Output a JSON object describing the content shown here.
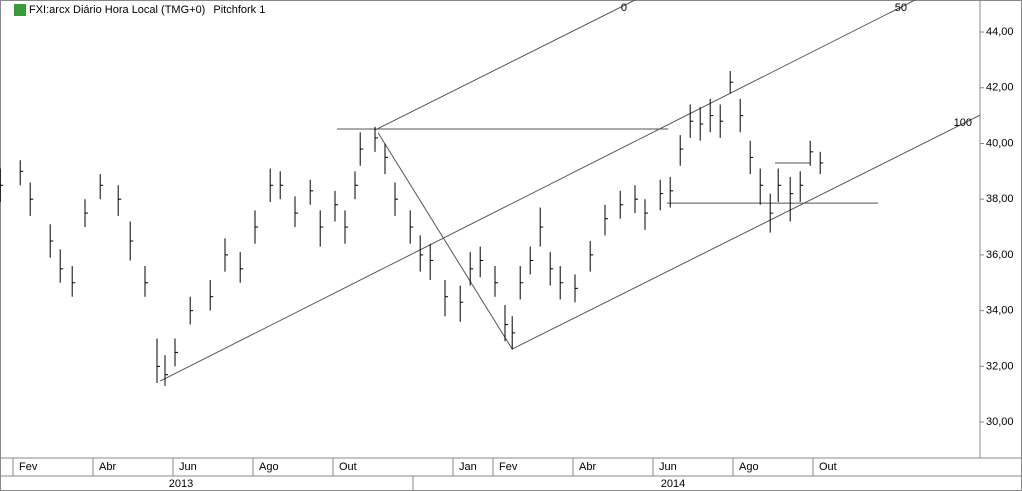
{
  "chart_data": {
    "type": "ohlc",
    "title": "FXI:arcx Diário Hora Local (TMG+0)",
    "study": "Pitchfork 1",
    "color": "#000000",
    "x": [
      0.68,
      1.18,
      1.43,
      1.93,
      2.18,
      2.48,
      2.8,
      3.18,
      3.63,
      3.93,
      4.3,
      4.6,
      4.8,
      5.05,
      5.43,
      5.93,
      6.3,
      6.68,
      7.05,
      7.43,
      7.68,
      8.05,
      8.43,
      8.68,
      9.05,
      9.3,
      9.55,
      9.68,
      10.05,
      10.3,
      10.55,
      10.93,
      11.18,
      11.43,
      11.8,
      12.18,
      12.43,
      12.68,
      13.05,
      13.3,
      13.48,
      13.68,
      13.93,
      14.18,
      14.43,
      14.68,
      15.05,
      15.43,
      15.8,
      16.18,
      16.55,
      16.8,
      17.18,
      17.43,
      17.68,
      17.93,
      18.18,
      18.43,
      18.68,
      18.93,
      19.18,
      19.43,
      19.68,
      19.93,
      20.13,
      20.43,
      20.68,
      20.93,
      21.18
    ],
    "high": [
      39.1,
      39.4,
      38.6,
      37.1,
      36.2,
      35.6,
      38.0,
      38.9,
      38.5,
      37.2,
      35.6,
      33.0,
      32.4,
      33.0,
      34.5,
      35.1,
      36.6,
      36.1,
      37.6,
      39.1,
      39.0,
      38.1,
      38.7,
      37.6,
      38.3,
      37.6,
      39.0,
      40.4,
      40.6,
      40.0,
      38.6,
      37.6,
      36.7,
      36.4,
      35.1,
      34.9,
      36.1,
      36.3,
      35.6,
      34.2,
      33.8,
      35.6,
      36.3,
      37.7,
      36.1,
      35.6,
      35.3,
      36.5,
      37.8,
      38.3,
      38.5,
      38.0,
      38.7,
      38.8,
      40.3,
      41.4,
      41.3,
      41.6,
      41.4,
      42.6,
      41.6,
      40.1,
      39.1,
      38.2,
      39.1,
      38.8,
      39.0,
      40.1,
      39.7
    ],
    "low": [
      37.9,
      38.5,
      37.4,
      35.9,
      35.0,
      34.5,
      37.0,
      38.0,
      37.4,
      35.8,
      34.5,
      31.4,
      31.3,
      32.0,
      33.5,
      34.0,
      35.4,
      35.0,
      36.4,
      37.9,
      38.0,
      37.0,
      37.8,
      36.3,
      37.2,
      36.4,
      38.0,
      39.2,
      39.7,
      38.9,
      37.4,
      36.4,
      35.4,
      35.1,
      33.8,
      33.6,
      34.9,
      35.2,
      34.5,
      32.9,
      32.6,
      34.4,
      35.3,
      36.3,
      34.9,
      34.4,
      34.3,
      35.4,
      36.7,
      37.3,
      37.5,
      36.9,
      37.6,
      37.7,
      39.2,
      40.2,
      40.1,
      40.4,
      40.2,
      41.8,
      40.4,
      38.9,
      37.8,
      36.8,
      37.9,
      37.2,
      37.9,
      39.2,
      38.9
    ],
    "close": [
      38.5,
      39.0,
      38.0,
      36.5,
      35.5,
      35.0,
      37.5,
      38.5,
      38.0,
      36.5,
      35.0,
      32.0,
      31.7,
      32.5,
      34.0,
      34.5,
      36.0,
      35.5,
      37.0,
      38.5,
      38.5,
      37.5,
      38.3,
      37.0,
      37.8,
      37.0,
      38.5,
      39.8,
      40.2,
      39.5,
      38.0,
      37.0,
      36.0,
      35.8,
      34.5,
      34.3,
      35.5,
      35.8,
      35.0,
      33.5,
      33.2,
      35.0,
      35.8,
      37.0,
      35.5,
      35.0,
      34.8,
      36.0,
      37.3,
      37.8,
      38.0,
      37.5,
      38.2,
      38.3,
      39.8,
      40.8,
      40.7,
      41.0,
      40.8,
      42.2,
      41.0,
      39.5,
      38.5,
      37.5,
      38.5,
      38.2,
      38.5,
      39.7,
      39.3
    ],
    "xlim": [
      0.675,
      25.175
    ],
    "ylim": [
      28.71,
      45.15
    ],
    "xticks": [
      {
        "value": 1,
        "label": "Fev"
      },
      {
        "value": 3,
        "label": "Abr"
      },
      {
        "value": 5,
        "label": "Jun"
      },
      {
        "value": 7,
        "label": "Ago"
      },
      {
        "value": 9,
        "label": "Out"
      },
      {
        "value": 12,
        "label": "Jan"
      },
      {
        "value": 13,
        "label": "Fev"
      },
      {
        "value": 15,
        "label": "Abr"
      },
      {
        "value": 17,
        "label": "Jun"
      },
      {
        "value": 19,
        "label": "Ago"
      },
      {
        "value": 21,
        "label": "Out"
      }
    ],
    "years": [
      {
        "value": 5.2,
        "label": "2013"
      },
      {
        "value": 17.5,
        "label": "2014"
      }
    ],
    "year_breaks": [
      11
    ],
    "yticks": [
      {
        "value": 30,
        "label": "30,00"
      },
      {
        "value": 32,
        "label": "32,00"
      },
      {
        "value": 34,
        "label": "34,00"
      },
      {
        "value": 36,
        "label": "36,00"
      },
      {
        "value": 38,
        "label": "38,00"
      },
      {
        "value": 40,
        "label": "40,00"
      },
      {
        "value": 42,
        "label": "42,00"
      },
      {
        "value": 44,
        "label": "44,00"
      }
    ],
    "pitchfork": [
      {
        "label": "0",
        "x": [
          10.05,
          16.55
        ],
        "y": [
          40.48,
          45.15
        ]
      },
      {
        "label": "50",
        "x": [
          4.68,
          23.55
        ],
        "y": [
          31.47,
          45.15
        ]
      },
      {
        "label": "100",
        "x": [
          13.48,
          25.18
        ],
        "y": [
          32.62,
          41.02
        ]
      },
      {
        "x": [
          10.13,
          13.48
        ],
        "y": [
          40.38,
          32.62
        ]
      },
      {
        "x": [
          9.1,
          17.38
        ],
        "y": [
          40.52,
          40.52
        ]
      },
      {
        "x": [
          17.35,
          22.63
        ],
        "y": [
          37.86,
          37.86
        ]
      },
      {
        "x": [
          20.05,
          20.93
        ],
        "y": [
          39.3,
          39.3
        ]
      }
    ]
  }
}
